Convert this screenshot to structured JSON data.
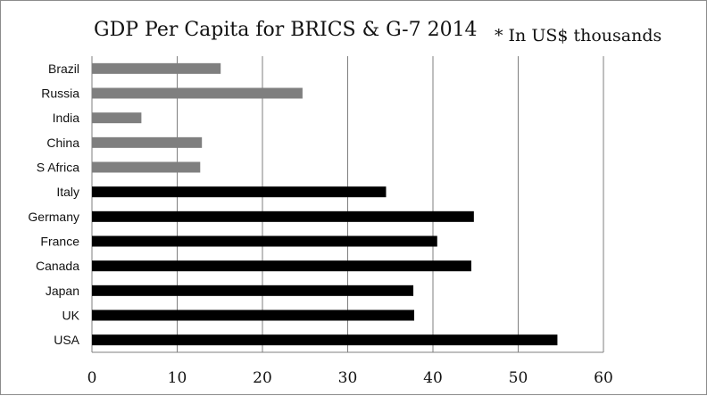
{
  "chart_data": {
    "type": "bar",
    "orientation": "horizontal",
    "title": "GDP Per Capita for BRICS & G-7 2014",
    "annotation": "* In US$ thousands",
    "categories": [
      "Brazil",
      "Russia",
      "India",
      "China",
      "S Africa",
      "Italy",
      "Germany",
      "France",
      "Canada",
      "Japan",
      "UK",
      "USA"
    ],
    "values": [
      15.1,
      24.7,
      5.8,
      12.9,
      12.7,
      34.5,
      44.8,
      40.5,
      44.5,
      37.7,
      37.8,
      54.6
    ],
    "groups": [
      {
        "members": [
          "Brazil",
          "Russia",
          "India",
          "China",
          "S Africa"
        ],
        "color": "#7f7f7f"
      },
      {
        "members": [
          "Italy",
          "Germany",
          "France",
          "Canada",
          "Japan",
          "UK",
          "USA"
        ],
        "color": "#000000"
      }
    ],
    "xlim": [
      0,
      60
    ],
    "xticks": [
      0,
      10,
      20,
      30,
      40,
      50,
      60
    ],
    "xlabel": "",
    "ylabel": "",
    "grid": {
      "vertical": true,
      "horizontal": false,
      "color": "#7f7f7f"
    },
    "legend": "none"
  }
}
